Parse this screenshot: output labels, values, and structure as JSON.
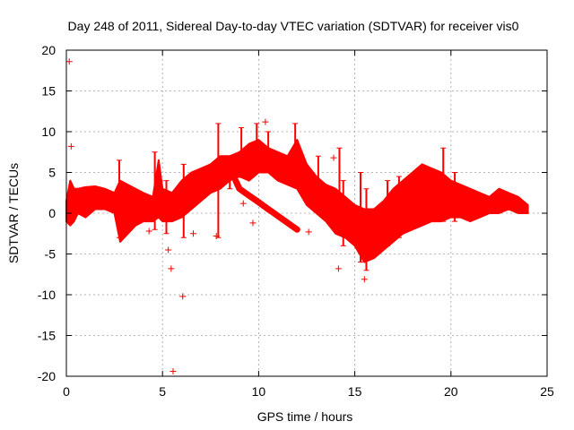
{
  "chart_data": {
    "type": "scatter",
    "title": "Day 248 of 2011, Sidereal Day-to-day VTEC variation (SDTVAR) for receiver vis0",
    "xlabel": "GPS time / hours",
    "ylabel": "SDTVAR / TECUs",
    "xlim": [
      0,
      25
    ],
    "ylim": [
      -20,
      20
    ],
    "xticks": [
      0,
      5,
      10,
      15,
      20,
      25
    ],
    "yticks": [
      -20,
      -15,
      -10,
      -5,
      0,
      5,
      10,
      15,
      20
    ],
    "grid": true,
    "marker": "+",
    "series_color": "#ff0000",
    "envelope": [
      {
        "x": 0.0,
        "lo": -1.0,
        "hi": 1.5
      },
      {
        "x": 0.2,
        "lo": -1.5,
        "hi": 4.0
      },
      {
        "x": 0.4,
        "lo": -1.0,
        "hi": 3.0
      },
      {
        "x": 0.6,
        "lo": 0.0,
        "hi": 3.0
      },
      {
        "x": 1.0,
        "lo": -0.5,
        "hi": 3.2
      },
      {
        "x": 1.5,
        "lo": 0.5,
        "hi": 3.3
      },
      {
        "x": 2.0,
        "lo": 0.5,
        "hi": 3.0
      },
      {
        "x": 2.5,
        "lo": 0.0,
        "hi": 2.5
      },
      {
        "x": 2.8,
        "lo": -3.5,
        "hi": 4.0
      },
      {
        "x": 3.2,
        "lo": -2.5,
        "hi": 3.5
      },
      {
        "x": 3.6,
        "lo": -1.5,
        "hi": 3.0
      },
      {
        "x": 4.0,
        "lo": -1.0,
        "hi": 2.5
      },
      {
        "x": 4.5,
        "lo": -1.0,
        "hi": 2.0
      },
      {
        "x": 4.8,
        "lo": -0.5,
        "hi": 6.5
      },
      {
        "x": 5.0,
        "lo": -1.0,
        "hi": 3.0
      },
      {
        "x": 5.5,
        "lo": -1.0,
        "hi": 2.5
      },
      {
        "x": 6.0,
        "lo": -0.5,
        "hi": 4.0
      },
      {
        "x": 6.5,
        "lo": 0.5,
        "hi": 5.0
      },
      {
        "x": 7.0,
        "lo": 1.5,
        "hi": 5.5
      },
      {
        "x": 7.5,
        "lo": 2.5,
        "hi": 6.0
      },
      {
        "x": 8.0,
        "lo": 3.0,
        "hi": 7.0
      },
      {
        "x": 8.5,
        "lo": 4.0,
        "hi": 7.0
      },
      {
        "x": 9.0,
        "lo": 4.5,
        "hi": 7.5
      },
      {
        "x": 9.5,
        "lo": 4.0,
        "hi": 8.5
      },
      {
        "x": 10.0,
        "lo": 5.0,
        "hi": 9.0
      },
      {
        "x": 10.5,
        "lo": 5.0,
        "hi": 8.0
      },
      {
        "x": 11.0,
        "lo": 4.0,
        "hi": 7.5
      },
      {
        "x": 11.5,
        "lo": 3.5,
        "hi": 7.0
      },
      {
        "x": 12.0,
        "lo": 3.0,
        "hi": 9.0
      },
      {
        "x": 12.5,
        "lo": 1.0,
        "hi": 6.0
      },
      {
        "x": 13.0,
        "lo": 0.0,
        "hi": 4.5
      },
      {
        "x": 13.5,
        "lo": -1.0,
        "hi": 3.5
      },
      {
        "x": 14.0,
        "lo": -2.5,
        "hi": 3.0
      },
      {
        "x": 14.5,
        "lo": -3.0,
        "hi": 2.0
      },
      {
        "x": 15.0,
        "lo": -4.0,
        "hi": 1.0
      },
      {
        "x": 15.5,
        "lo": -6.0,
        "hi": 0.5
      },
      {
        "x": 16.0,
        "lo": -5.5,
        "hi": 0.5
      },
      {
        "x": 16.5,
        "lo": -4.5,
        "hi": 1.5
      },
      {
        "x": 17.0,
        "lo": -3.5,
        "hi": 3.0
      },
      {
        "x": 17.5,
        "lo": -2.5,
        "hi": 4.0
      },
      {
        "x": 18.0,
        "lo": -2.0,
        "hi": 5.0
      },
      {
        "x": 18.5,
        "lo": -1.5,
        "hi": 6.0
      },
      {
        "x": 19.0,
        "lo": -1.0,
        "hi": 5.5
      },
      {
        "x": 19.5,
        "lo": -1.0,
        "hi": 5.0
      },
      {
        "x": 20.0,
        "lo": -0.5,
        "hi": 4.0
      },
      {
        "x": 20.5,
        "lo": -0.5,
        "hi": 3.5
      },
      {
        "x": 21.0,
        "lo": -1.0,
        "hi": 3.0
      },
      {
        "x": 21.5,
        "lo": -0.5,
        "hi": 2.5
      },
      {
        "x": 22.0,
        "lo": 0.0,
        "hi": 2.0
      },
      {
        "x": 22.5,
        "lo": 0.0,
        "hi": 3.0
      },
      {
        "x": 23.0,
        "lo": 0.5,
        "hi": 2.5
      },
      {
        "x": 23.5,
        "lo": 0.0,
        "hi": 2.0
      },
      {
        "x": 24.0,
        "lo": 0.0,
        "hi": 1.0
      }
    ],
    "band2": [
      {
        "x": 8.8,
        "y": 4.0
      },
      {
        "x": 9.0,
        "y": 3.0
      },
      {
        "x": 9.3,
        "y": 2.5
      },
      {
        "x": 9.6,
        "y": 2.0
      },
      {
        "x": 9.9,
        "y": 1.5
      },
      {
        "x": 10.2,
        "y": 1.0
      },
      {
        "x": 10.5,
        "y": 0.5
      },
      {
        "x": 10.8,
        "y": 0.0
      },
      {
        "x": 11.1,
        "y": -0.5
      },
      {
        "x": 11.4,
        "y": -1.0
      },
      {
        "x": 11.7,
        "y": -1.5
      },
      {
        "x": 12.0,
        "y": -2.0
      }
    ],
    "spikes": [
      {
        "x": 2.75,
        "lo": -3.0,
        "hi": 6.5
      },
      {
        "x": 4.6,
        "lo": -2.0,
        "hi": 7.5
      },
      {
        "x": 5.2,
        "lo": -2.5,
        "hi": 4.0
      },
      {
        "x": 6.1,
        "lo": -3.0,
        "hi": 6.0
      },
      {
        "x": 7.9,
        "lo": -3.0,
        "hi": 11.0
      },
      {
        "x": 8.5,
        "lo": 3.0,
        "hi": 7.0
      },
      {
        "x": 9.1,
        "lo": 5.0,
        "hi": 10.5
      },
      {
        "x": 9.9,
        "lo": 5.5,
        "hi": 11.0
      },
      {
        "x": 10.5,
        "lo": 5.0,
        "hi": 10.0
      },
      {
        "x": 11.9,
        "lo": 6.0,
        "hi": 11.0
      },
      {
        "x": 13.1,
        "lo": 2.0,
        "hi": 7.0
      },
      {
        "x": 14.2,
        "lo": -1.0,
        "hi": 8.0
      },
      {
        "x": 14.4,
        "lo": -4.0,
        "hi": 4.0
      },
      {
        "x": 15.3,
        "lo": -6.0,
        "hi": 5.0
      },
      {
        "x": 15.6,
        "lo": -7.0,
        "hi": 3.0
      },
      {
        "x": 16.7,
        "lo": -4.0,
        "hi": 4.0
      },
      {
        "x": 17.3,
        "lo": -3.0,
        "hi": 4.5
      },
      {
        "x": 19.6,
        "lo": -1.0,
        "hi": 8.0
      },
      {
        "x": 20.2,
        "lo": -1.0,
        "hi": 5.0
      }
    ],
    "outliers": [
      {
        "x": 0.15,
        "y": 18.6
      },
      {
        "x": 0.25,
        "y": 8.2
      },
      {
        "x": 5.45,
        "y": -6.8
      },
      {
        "x": 5.55,
        "y": -19.4
      },
      {
        "x": 6.05,
        "y": -10.2
      },
      {
        "x": 5.3,
        "y": -4.5
      },
      {
        "x": 7.8,
        "y": -2.8
      },
      {
        "x": 9.2,
        "y": 1.2
      },
      {
        "x": 9.7,
        "y": -1.2
      },
      {
        "x": 10.35,
        "y": 11.2
      },
      {
        "x": 13.9,
        "y": 6.8
      },
      {
        "x": 14.15,
        "y": -6.8
      },
      {
        "x": 15.5,
        "y": -8.1
      },
      {
        "x": 4.3,
        "y": -2.2
      },
      {
        "x": 6.6,
        "y": -2.5
      },
      {
        "x": 12.6,
        "y": -2.3
      }
    ]
  }
}
